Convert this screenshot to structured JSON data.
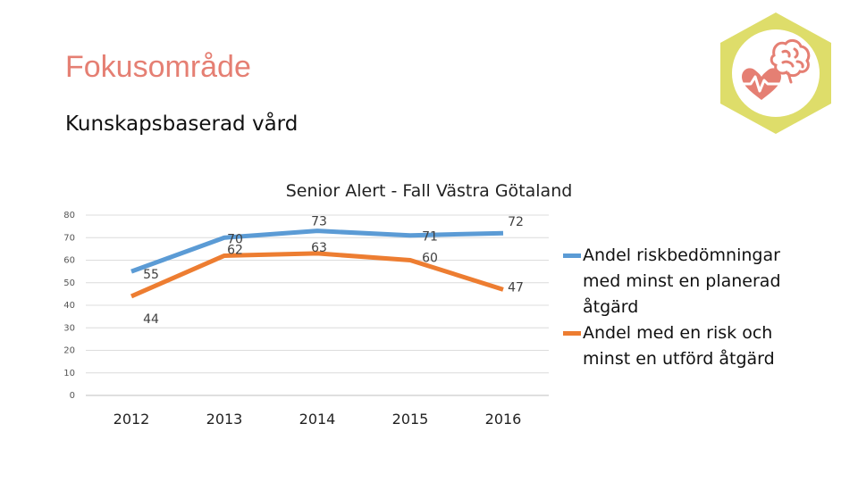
{
  "page": {
    "heading": "Fokusområde",
    "subheading": "Kunskapsbaserad vård"
  },
  "logo": {
    "icon": "heart-brain-icon",
    "hex_color": "#dedd6a",
    "circle_color": "#ffffff",
    "accent": "#e57f73"
  },
  "chart_data": {
    "type": "line",
    "title": "Senior Alert - Fall Västra Götaland",
    "xlabel": "",
    "ylabel": "",
    "x": [
      "2012",
      "2013",
      "2014",
      "2015",
      "2016"
    ],
    "ylim": [
      0,
      80
    ],
    "yticks": [
      0,
      10,
      20,
      30,
      40,
      50,
      60,
      70,
      80
    ],
    "grid": true,
    "legend": "right",
    "series": [
      {
        "name": "Andel riskbedömningar med minst en planerad åtgärd",
        "values": [
          55,
          70,
          73,
          71,
          72
        ],
        "color": "#5b9bd5"
      },
      {
        "name": "Andel med en risk och minst en utförd åtgärd",
        "values": [
          44,
          62,
          63,
          60,
          47
        ],
        "color": "#ed7d31"
      }
    ]
  }
}
